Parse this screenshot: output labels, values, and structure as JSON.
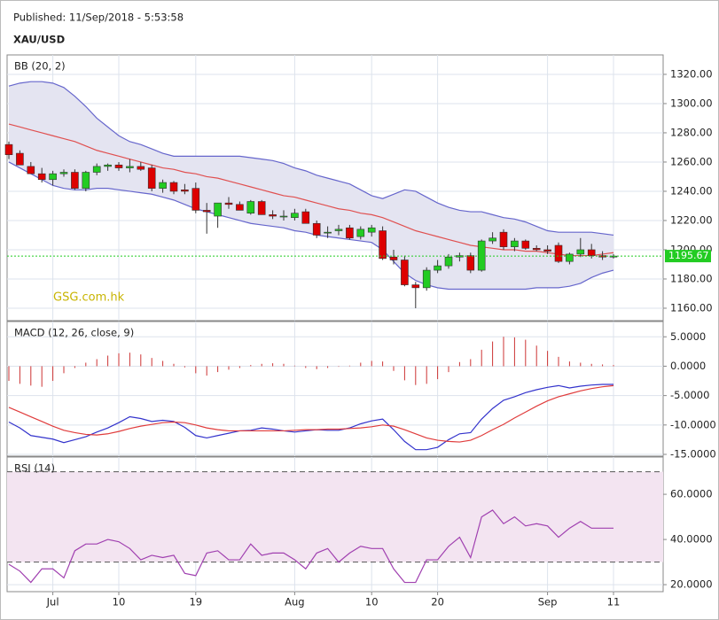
{
  "header": {
    "published": "Published: 11/Sep/2018 - 5:53:58",
    "symbol": "XAU/USD"
  },
  "chart_data": [
    {
      "type": "candlestick",
      "title": "BB (20, 2)",
      "watermark": "GSG.com.hk",
      "open": [
        1272,
        1266,
        1257,
        1252,
        1248,
        1252,
        1253,
        1242,
        1253,
        1257,
        1258,
        1256,
        1257,
        1256,
        1242,
        1246,
        1241,
        1242,
        1227,
        1223,
        1232,
        1231,
        1225,
        1233,
        1224,
        1223,
        1222,
        1226,
        1218,
        1212,
        1213,
        1215,
        1209,
        1212,
        1213,
        1195,
        1193,
        1176,
        1174,
        1186,
        1189,
        1195,
        1196,
        1186,
        1206,
        1212,
        1202,
        1206,
        1201,
        1200,
        1203,
        1192,
        1197,
        1200,
        1196,
        1195
      ],
      "high": [
        1274,
        1268,
        1260,
        1256,
        1254,
        1255,
        1255,
        1254,
        1259,
        1259,
        1260,
        1262,
        1260,
        1258,
        1248,
        1247,
        1245,
        1246,
        1232,
        1232,
        1236,
        1233,
        1234,
        1234,
        1227,
        1227,
        1228,
        1228,
        1220,
        1216,
        1217,
        1217,
        1216,
        1217,
        1216,
        1200,
        1196,
        1178,
        1188,
        1193,
        1197,
        1198,
        1198,
        1207,
        1212,
        1214,
        1208,
        1207,
        1203,
        1203,
        1205,
        1198,
        1208,
        1204,
        1199,
        1197
      ],
      "low": [
        1262,
        1258,
        1252,
        1246,
        1244,
        1250,
        1241,
        1240,
        1251,
        1254,
        1254,
        1253,
        1254,
        1240,
        1239,
        1238,
        1238,
        1225,
        1211,
        1215,
        1228,
        1227,
        1224,
        1224,
        1221,
        1220,
        1220,
        1218,
        1208,
        1208,
        1210,
        1207,
        1207,
        1209,
        1193,
        1190,
        1175,
        1160,
        1172,
        1184,
        1187,
        1192,
        1184,
        1185,
        1204,
        1200,
        1199,
        1200,
        1199,
        1197,
        1191,
        1190,
        1195,
        1194,
        1193,
        1194
      ],
      "close": [
        1265,
        1258,
        1252,
        1248,
        1252,
        1253,
        1242,
        1253,
        1257,
        1258,
        1256,
        1257,
        1255,
        1242,
        1246,
        1240,
        1240,
        1227,
        1226,
        1232,
        1231,
        1227,
        1233,
        1224,
        1223,
        1223,
        1225,
        1218,
        1210,
        1212,
        1214,
        1208,
        1214,
        1215,
        1194,
        1193,
        1176,
        1174,
        1186,
        1189,
        1195,
        1196,
        1186,
        1206,
        1208,
        1202,
        1206,
        1201,
        1200,
        1199,
        1192,
        1197,
        1200,
        1196,
        1195,
        1195.67
      ],
      "bb_upper": [
        1312,
        1314,
        1315,
        1315,
        1314,
        1311,
        1305,
        1298,
        1290,
        1284,
        1278,
        1274,
        1272,
        1269,
        1266,
        1264,
        1264,
        1264,
        1264,
        1264,
        1264,
        1264,
        1263,
        1262,
        1261,
        1259,
        1256,
        1254,
        1251,
        1249,
        1247,
        1245,
        1241,
        1237,
        1235,
        1238,
        1241,
        1240,
        1236,
        1232,
        1229,
        1227,
        1226,
        1226,
        1224,
        1222,
        1221,
        1219,
        1216,
        1213,
        1212,
        1212,
        1212,
        1212,
        1211,
        1210
      ],
      "bb_middle": [
        1286,
        1284,
        1282,
        1280,
        1278,
        1276,
        1274,
        1271,
        1268,
        1266,
        1264,
        1262,
        1260,
        1258,
        1256,
        1255,
        1253,
        1252,
        1250,
        1249,
        1247,
        1245,
        1243,
        1241,
        1239,
        1237,
        1236,
        1234,
        1232,
        1230,
        1228,
        1227,
        1225,
        1224,
        1222,
        1219,
        1216,
        1213,
        1211,
        1209,
        1207,
        1205,
        1203,
        1202,
        1201,
        1200,
        1200,
        1199,
        1199,
        1198,
        1197,
        1196,
        1196,
        1196,
        1197,
        1198
      ],
      "bb_lower": [
        1260,
        1256,
        1252,
        1248,
        1244,
        1242,
        1241,
        1241,
        1242,
        1242,
        1241,
        1240,
        1239,
        1238,
        1236,
        1234,
        1231,
        1228,
        1226,
        1224,
        1222,
        1220,
        1218,
        1217,
        1216,
        1215,
        1213,
        1212,
        1210,
        1209,
        1208,
        1207,
        1206,
        1205,
        1200,
        1192,
        1184,
        1179,
        1176,
        1174,
        1173,
        1173,
        1173,
        1173,
        1173,
        1173,
        1173,
        1173,
        1174,
        1174,
        1174,
        1175,
        1177,
        1181,
        1184,
        1186
      ],
      "last_price": 1195.67,
      "up_color": "#22cc22",
      "down_color": "#dd0000",
      "band_color": "#6666cc",
      "band_fill": "#e4e4f1",
      "middle_color": "#e05050",
      "last_color": "#22cc22",
      "ylim": [
        1151.5,
        1333.3
      ],
      "yticks": [
        {
          "value": 1160,
          "label": "1160.00"
        },
        {
          "value": 1180,
          "label": "1180.00"
        },
        {
          "value": 1200,
          "label": "1200.00"
        },
        {
          "value": 1220,
          "label": "1220.00"
        },
        {
          "value": 1240,
          "label": "1240.00"
        },
        {
          "value": 1260,
          "label": "1260.00"
        },
        {
          "value": 1280,
          "label": "1280.00"
        },
        {
          "value": 1300,
          "label": "1300.00"
        },
        {
          "value": 1320,
          "label": "1320.00"
        }
      ],
      "grid": true
    },
    {
      "type": "macd",
      "title": "MACD (12, 26, close, 9)",
      "histogram": [
        -2.5,
        -3,
        -3.3,
        -3.5,
        -2.5,
        -1.2,
        -0.3,
        0.6,
        1.2,
        1.8,
        2.2,
        2.3,
        2.0,
        1.4,
        0.9,
        0.4,
        -0.2,
        -1.2,
        -1.6,
        -1.0,
        -0.6,
        -0.3,
        0.2,
        0.4,
        0.5,
        0.4,
        0.1,
        -0.3,
        -0.5,
        -0.3,
        -0.1,
        0.1,
        0.6,
        0.9,
        0.8,
        -0.8,
        -2.4,
        -3.2,
        -3.0,
        -2.2,
        -1.0,
        0.7,
        1.2,
        2.8,
        4.2,
        5.0,
        4.9,
        4.5,
        3.5,
        2.6,
        1.6,
        0.8,
        0.6,
        0.4,
        0.3,
        0.2
      ],
      "macd": [
        -9.5,
        -10.5,
        -11.8,
        -12.1,
        -12.4,
        -13.0,
        -12.5,
        -12.0,
        -11.2,
        -10.5,
        -9.6,
        -8.6,
        -8.9,
        -9.4,
        -9.2,
        -9.4,
        -10.4,
        -11.8,
        -12.2,
        -11.8,
        -11.4,
        -11.0,
        -10.9,
        -10.5,
        -10.7,
        -11.0,
        -11.2,
        -11.0,
        -10.8,
        -10.9,
        -10.9,
        -10.5,
        -9.8,
        -9.3,
        -9.0,
        -10.8,
        -12.8,
        -14.2,
        -14.2,
        -13.8,
        -12.5,
        -11.5,
        -11.3,
        -9.0,
        -7.2,
        -5.8,
        -5.2,
        -4.5,
        -4.0,
        -3.6,
        -3.3,
        -3.7,
        -3.4,
        -3.2,
        -3.1,
        -3.1
      ],
      "signal": [
        -7.0,
        -7.8,
        -8.6,
        -9.4,
        -10.2,
        -10.9,
        -11.3,
        -11.6,
        -11.7,
        -11.5,
        -11.1,
        -10.6,
        -10.2,
        -9.9,
        -9.6,
        -9.5,
        -9.6,
        -10.0,
        -10.5,
        -10.8,
        -11.0,
        -11.0,
        -11.0,
        -11.0,
        -11.0,
        -11.0,
        -10.9,
        -10.8,
        -10.8,
        -10.7,
        -10.7,
        -10.6,
        -10.5,
        -10.3,
        -10.0,
        -10.2,
        -10.8,
        -11.5,
        -12.2,
        -12.6,
        -12.8,
        -12.9,
        -12.6,
        -11.8,
        -10.8,
        -9.9,
        -8.8,
        -7.8,
        -6.8,
        -5.9,
        -5.2,
        -4.7,
        -4.2,
        -3.8,
        -3.5,
        -3.3
      ],
      "histogram_color": "#cc3333",
      "macd_color": "#3333cc",
      "signal_color": "#e03c3c",
      "ylim": [
        -15.3,
        7.6
      ],
      "yticks": [
        {
          "value": -15,
          "label": "-15.0000"
        },
        {
          "value": -10,
          "label": "-10.0000"
        },
        {
          "value": -5,
          "label": "-5.0000"
        },
        {
          "value": 0,
          "label": "0.0000"
        },
        {
          "value": 5,
          "label": "5.0000"
        }
      ],
      "grid": true
    },
    {
      "type": "rsi",
      "title": "RSI (14)",
      "categories": [
        null,
        null,
        null,
        null,
        "Jul",
        null,
        null,
        null,
        null,
        null,
        "10",
        null,
        null,
        null,
        null,
        null,
        null,
        "19",
        null,
        null,
        null,
        null,
        null,
        null,
        null,
        null,
        "Aug",
        null,
        null,
        null,
        null,
        null,
        null,
        "10",
        null,
        null,
        null,
        null,
        null,
        "20",
        null,
        null,
        null,
        null,
        null,
        null,
        null,
        null,
        null,
        "Sep",
        null,
        null,
        null,
        null,
        null,
        "11"
      ],
      "values": [
        29,
        26,
        21,
        27,
        27,
        23,
        35,
        38,
        38,
        40,
        39,
        36,
        31,
        33,
        32,
        33,
        25,
        24,
        34,
        35,
        31,
        31,
        38,
        33,
        34,
        34,
        31,
        27,
        34,
        36,
        30,
        34,
        37,
        36,
        36,
        27,
        21,
        21,
        31,
        31,
        37,
        41,
        32,
        50,
        53,
        47,
        50,
        46,
        47,
        46,
        41,
        45,
        48,
        45,
        45,
        45
      ],
      "levels": [
        30,
        70
      ],
      "color": "#a040b0",
      "level_fill": "#f3e4f1",
      "ylim": [
        16.9,
        76.5
      ],
      "yticks": [
        {
          "value": 20,
          "label": "20.0000"
        },
        {
          "value": 40,
          "label": "40.0000"
        },
        {
          "value": 60,
          "label": "60.0000"
        }
      ],
      "grid": true
    }
  ]
}
